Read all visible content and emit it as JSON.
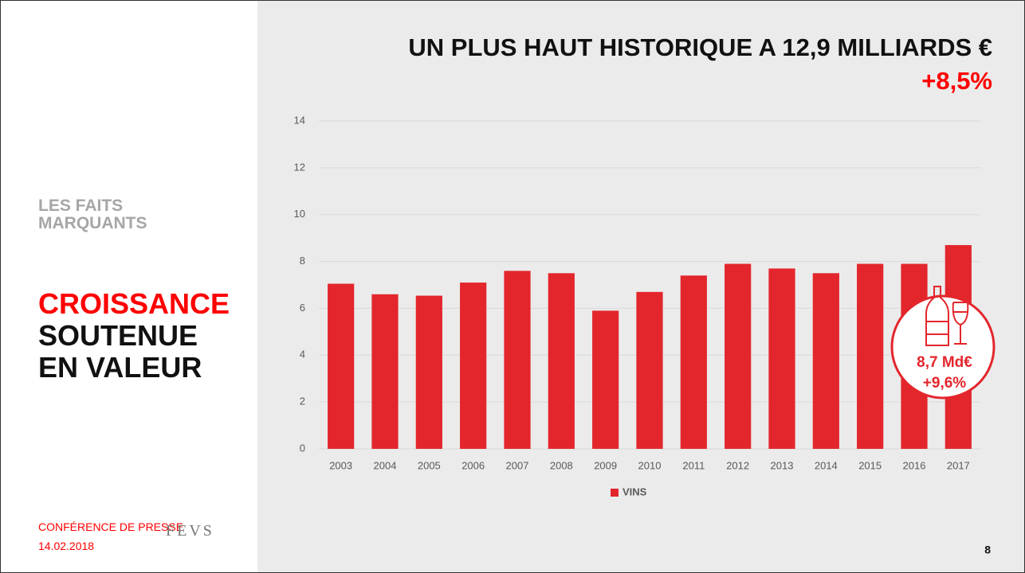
{
  "sidebar": {
    "section": "LES FAITS MARQUANTS",
    "headline": [
      "CROISSANCE",
      "SOUTENUE",
      "EN VALEUR"
    ],
    "event": "CONFÉRENCE DE PRESSE",
    "date": "14.02.2018",
    "logo": "FEVS"
  },
  "page_number": "8",
  "chart_data": {
    "type": "bar",
    "title": "UN PLUS HAUT HISTORIQUE A 12,9 MILLIARDS €",
    "subtitle": "+8,5%",
    "categories": [
      "2003",
      "2004",
      "2005",
      "2006",
      "2007",
      "2008",
      "2009",
      "2010",
      "2011",
      "2012",
      "2013",
      "2014",
      "2015",
      "2016",
      "2017"
    ],
    "series": [
      {
        "name": "VINS",
        "color": "#e3262c",
        "values": [
          7.05,
          6.6,
          6.54,
          7.1,
          7.6,
          7.5,
          5.9,
          6.7,
          7.4,
          7.9,
          7.7,
          7.5,
          7.9,
          7.9,
          8.7
        ]
      }
    ],
    "ylim": [
      0,
      14
    ],
    "yticks": [
      0,
      2,
      4,
      6,
      8,
      10,
      12,
      14
    ],
    "grid": true,
    "legend": "bottom",
    "annotations": [
      "8,7 Md€",
      "+9,6%"
    ]
  }
}
